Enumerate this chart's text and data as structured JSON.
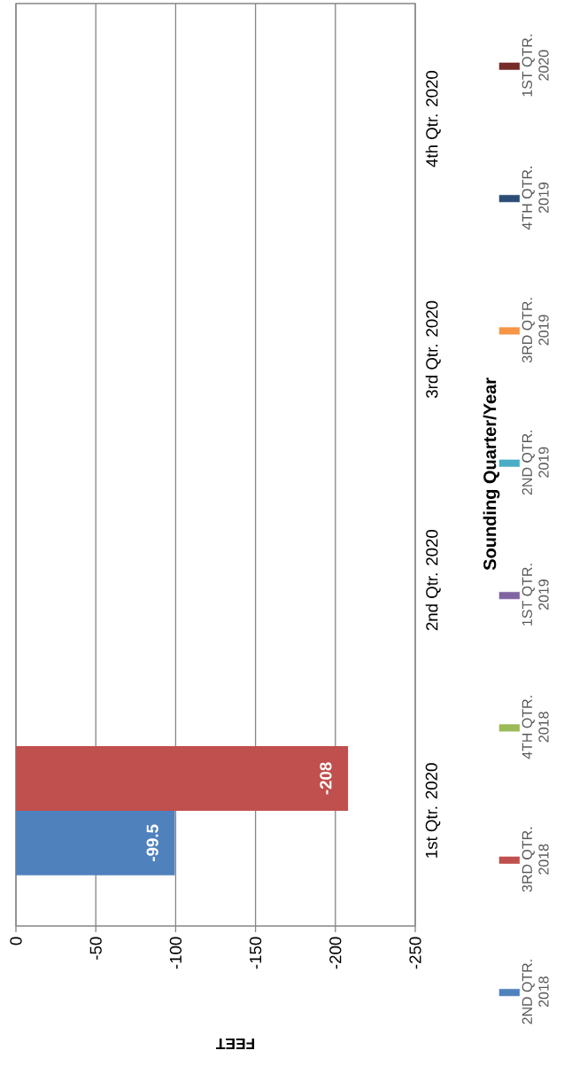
{
  "chart_data": {
    "type": "bar",
    "orientation": "horizontal",
    "xlabel": "FEET",
    "ylabel": "Sounding Quarter/Year",
    "categories": [
      "4th Qtr. 2020",
      "3rd Qtr. 2020",
      "2nd Qtr. 2020",
      "1st Qtr. 2020"
    ],
    "xlim": [
      0,
      -250
    ],
    "xticks": [
      0,
      -50,
      -100,
      -150,
      -200,
      -250
    ],
    "grid": "x",
    "legend": "right",
    "series": [
      {
        "name": "2ND QTR. 2018",
        "color": "#4f81bd",
        "values": [
          null,
          null,
          null,
          -99.5
        ],
        "value_labels": [
          null,
          null,
          null,
          "-99.5"
        ]
      },
      {
        "name": "3RD QTR. 2018",
        "color": "#c0504d",
        "values": [
          null,
          null,
          null,
          -208
        ],
        "value_labels": [
          null,
          null,
          null,
          "-208"
        ]
      },
      {
        "name": "4TH QTR. 2018",
        "color": "#9bbb59",
        "values": [
          null,
          null,
          null,
          null
        ]
      },
      {
        "name": "1ST QTR. 2019",
        "color": "#8064a2",
        "values": [
          null,
          null,
          null,
          null
        ]
      },
      {
        "name": "2ND QTR. 2019",
        "color": "#4bacc6",
        "values": [
          null,
          null,
          null,
          null
        ]
      },
      {
        "name": "3RD QTR. 2019",
        "color": "#f79646",
        "values": [
          null,
          null,
          null,
          null
        ]
      },
      {
        "name": "4TH QTR. 2019",
        "color": "#2c4d75",
        "values": [
          null,
          null,
          null,
          null
        ]
      },
      {
        "name": "1ST QTR. 2020",
        "color": "#772c2a",
        "values": [
          null,
          null,
          null,
          null
        ]
      }
    ]
  }
}
